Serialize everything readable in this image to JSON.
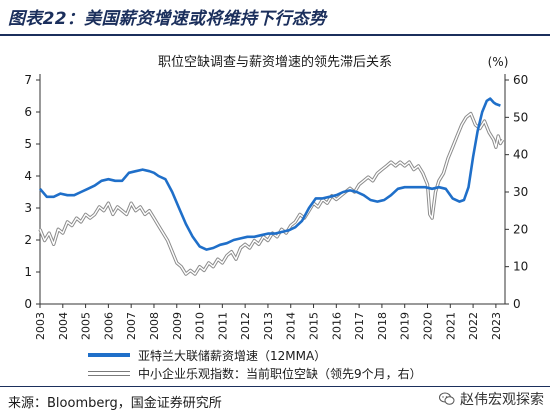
{
  "figure": {
    "title": "图表22：美国薪资增速或将维持下行态势",
    "source": "来源：Bloomberg，国金证券研究所",
    "watermark": "赵伟宏观探索",
    "watermark_icon": "wechat-logo-icon"
  },
  "colors": {
    "blue": "#1f6fc9",
    "gray": "#8c8c8c",
    "title": "#1b2f5c"
  },
  "chart_data": {
    "type": "line",
    "title": "职位空缺调查与薪资增速的领先滞后关系",
    "right_unit": "(%)",
    "x_ticks": [
      "2003",
      "2004",
      "2005",
      "2006",
      "2007",
      "2008",
      "2009",
      "2010",
      "2011",
      "2012",
      "2013",
      "2014",
      "2015",
      "2016",
      "2017",
      "2018",
      "2019",
      "2020",
      "2021",
      "2022",
      "2023"
    ],
    "xlim": [
      2003,
      2023.4
    ],
    "ylim_left": [
      0,
      7
    ],
    "yticks_left": [
      0,
      1,
      2,
      3,
      4,
      5,
      6,
      7
    ],
    "ylim_right": [
      0,
      60
    ],
    "yticks_right": [
      0,
      10,
      20,
      30,
      40,
      50,
      60
    ],
    "grid": false,
    "legend_position": "bottom",
    "series": [
      {
        "name": "亚特兰大联储薪资增速（12MMA）",
        "axis": "left",
        "style": "solid-blue",
        "points": [
          [
            2003.0,
            3.6
          ],
          [
            2003.3,
            3.35
          ],
          [
            2003.6,
            3.35
          ],
          [
            2003.9,
            3.45
          ],
          [
            2004.2,
            3.4
          ],
          [
            2004.5,
            3.4
          ],
          [
            2004.8,
            3.5
          ],
          [
            2005.1,
            3.6
          ],
          [
            2005.4,
            3.7
          ],
          [
            2005.7,
            3.85
          ],
          [
            2006.0,
            3.9
          ],
          [
            2006.3,
            3.85
          ],
          [
            2006.6,
            3.85
          ],
          [
            2006.9,
            4.1
          ],
          [
            2007.2,
            4.15
          ],
          [
            2007.5,
            4.2
          ],
          [
            2007.8,
            4.15
          ],
          [
            2008.0,
            4.1
          ],
          [
            2008.2,
            4.0
          ],
          [
            2008.5,
            3.9
          ],
          [
            2008.8,
            3.5
          ],
          [
            2009.1,
            3.0
          ],
          [
            2009.4,
            2.5
          ],
          [
            2009.7,
            2.1
          ],
          [
            2010.0,
            1.8
          ],
          [
            2010.3,
            1.7
          ],
          [
            2010.6,
            1.75
          ],
          [
            2010.9,
            1.85
          ],
          [
            2011.2,
            1.9
          ],
          [
            2011.5,
            2.0
          ],
          [
            2011.8,
            2.05
          ],
          [
            2012.1,
            2.1
          ],
          [
            2012.4,
            2.1
          ],
          [
            2012.7,
            2.15
          ],
          [
            2013.0,
            2.2
          ],
          [
            2013.3,
            2.2
          ],
          [
            2013.6,
            2.25
          ],
          [
            2013.9,
            2.3
          ],
          [
            2014.2,
            2.4
          ],
          [
            2014.5,
            2.6
          ],
          [
            2014.8,
            3.0
          ],
          [
            2015.1,
            3.3
          ],
          [
            2015.4,
            3.3
          ],
          [
            2015.7,
            3.35
          ],
          [
            2016.0,
            3.4
          ],
          [
            2016.3,
            3.5
          ],
          [
            2016.6,
            3.55
          ],
          [
            2016.9,
            3.5
          ],
          [
            2017.2,
            3.4
          ],
          [
            2017.5,
            3.25
          ],
          [
            2017.8,
            3.2
          ],
          [
            2018.1,
            3.25
          ],
          [
            2018.4,
            3.4
          ],
          [
            2018.7,
            3.6
          ],
          [
            2019.0,
            3.65
          ],
          [
            2019.3,
            3.65
          ],
          [
            2019.6,
            3.65
          ],
          [
            2019.9,
            3.65
          ],
          [
            2020.2,
            3.6
          ],
          [
            2020.5,
            3.65
          ],
          [
            2020.8,
            3.6
          ],
          [
            2021.1,
            3.3
          ],
          [
            2021.4,
            3.2
          ],
          [
            2021.6,
            3.25
          ],
          [
            2021.8,
            3.65
          ],
          [
            2022.0,
            4.6
          ],
          [
            2022.2,
            5.4
          ],
          [
            2022.4,
            6.0
          ],
          [
            2022.6,
            6.35
          ],
          [
            2022.75,
            6.42
          ],
          [
            2022.9,
            6.3
          ],
          [
            2023.0,
            6.25
          ],
          [
            2023.2,
            6.2
          ]
        ]
      },
      {
        "name": "中小企业乐观指数：当前职位空缺（领先9个月，右）",
        "axis": "right",
        "style": "double-gray",
        "points": [
          [
            2003.0,
            20
          ],
          [
            2003.2,
            17
          ],
          [
            2003.4,
            19
          ],
          [
            2003.6,
            16
          ],
          [
            2003.8,
            20
          ],
          [
            2004.0,
            19
          ],
          [
            2004.2,
            22
          ],
          [
            2004.4,
            21
          ],
          [
            2004.6,
            23
          ],
          [
            2004.8,
            22
          ],
          [
            2005.0,
            24
          ],
          [
            2005.2,
            23
          ],
          [
            2005.4,
            24
          ],
          [
            2005.6,
            26
          ],
          [
            2005.8,
            25
          ],
          [
            2006.0,
            27
          ],
          [
            2006.2,
            24
          ],
          [
            2006.4,
            26
          ],
          [
            2006.6,
            25
          ],
          [
            2006.8,
            24
          ],
          [
            2007.0,
            27
          ],
          [
            2007.2,
            25
          ],
          [
            2007.4,
            26
          ],
          [
            2007.6,
            24
          ],
          [
            2007.8,
            25
          ],
          [
            2008.0,
            23
          ],
          [
            2008.2,
            21
          ],
          [
            2008.4,
            19
          ],
          [
            2008.6,
            17
          ],
          [
            2008.8,
            14
          ],
          [
            2009.0,
            11
          ],
          [
            2009.2,
            10
          ],
          [
            2009.4,
            8
          ],
          [
            2009.6,
            9
          ],
          [
            2009.8,
            8
          ],
          [
            2010.0,
            10
          ],
          [
            2010.2,
            9
          ],
          [
            2010.4,
            11
          ],
          [
            2010.6,
            10
          ],
          [
            2010.8,
            12
          ],
          [
            2011.0,
            11
          ],
          [
            2011.2,
            13
          ],
          [
            2011.4,
            14
          ],
          [
            2011.6,
            12
          ],
          [
            2011.8,
            15
          ],
          [
            2012.0,
            16
          ],
          [
            2012.2,
            15
          ],
          [
            2012.4,
            17
          ],
          [
            2012.6,
            16
          ],
          [
            2012.8,
            18
          ],
          [
            2013.0,
            17
          ],
          [
            2013.2,
            19
          ],
          [
            2013.4,
            18
          ],
          [
            2013.6,
            20
          ],
          [
            2013.8,
            19
          ],
          [
            2014.0,
            21
          ],
          [
            2014.2,
            22
          ],
          [
            2014.4,
            24
          ],
          [
            2014.6,
            23
          ],
          [
            2014.8,
            25
          ],
          [
            2015.0,
            27
          ],
          [
            2015.2,
            26
          ],
          [
            2015.4,
            28
          ],
          [
            2015.6,
            27
          ],
          [
            2015.8,
            29
          ],
          [
            2016.0,
            28
          ],
          [
            2016.2,
            29
          ],
          [
            2016.4,
            30
          ],
          [
            2016.6,
            31
          ],
          [
            2016.8,
            30
          ],
          [
            2017.0,
            32
          ],
          [
            2017.2,
            33
          ],
          [
            2017.4,
            34
          ],
          [
            2017.6,
            33
          ],
          [
            2017.8,
            35
          ],
          [
            2018.0,
            36
          ],
          [
            2018.2,
            37
          ],
          [
            2018.4,
            38
          ],
          [
            2018.6,
            37
          ],
          [
            2018.8,
            38
          ],
          [
            2019.0,
            37
          ],
          [
            2019.2,
            38
          ],
          [
            2019.4,
            36
          ],
          [
            2019.6,
            37
          ],
          [
            2019.8,
            35
          ],
          [
            2020.0,
            32
          ],
          [
            2020.1,
            24
          ],
          [
            2020.2,
            23
          ],
          [
            2020.35,
            30
          ],
          [
            2020.5,
            33
          ],
          [
            2020.7,
            35
          ],
          [
            2020.9,
            39
          ],
          [
            2021.1,
            42
          ],
          [
            2021.3,
            45
          ],
          [
            2021.5,
            48
          ],
          [
            2021.7,
            50
          ],
          [
            2021.9,
            51
          ],
          [
            2022.1,
            48
          ],
          [
            2022.3,
            47
          ],
          [
            2022.5,
            49
          ],
          [
            2022.7,
            46
          ],
          [
            2022.9,
            44
          ],
          [
            2023.0,
            42
          ],
          [
            2023.1,
            45
          ],
          [
            2023.2,
            43
          ],
          [
            2023.3,
            44
          ]
        ]
      }
    ]
  }
}
